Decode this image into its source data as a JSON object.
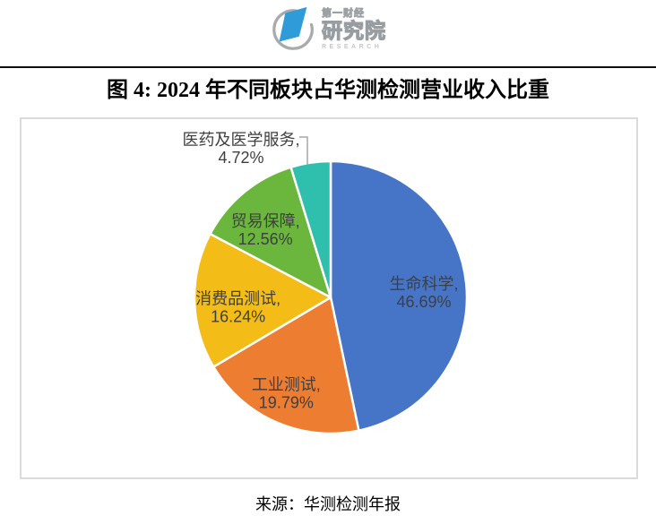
{
  "header": {
    "logo": {
      "cn_small": "第一财经",
      "cn_large": "研究院",
      "en": "RESEARCH",
      "brand_blue": "#2f9cd9",
      "brand_gray": "#a8abae"
    }
  },
  "title": "图 4: 2024 年不同板块占华测检测营业收入比重",
  "source": "来源：华测检测年报",
  "colors": {
    "label_text": "#3f3f3f",
    "leader_line": "#a6a6a6",
    "chart_border": "#dadada",
    "divider": "#0f0f0f"
  },
  "chart_data": {
    "type": "pie",
    "title": "2024 年不同板块占华测检测营业收入比重",
    "unit": "%",
    "start_angle_deg": 0,
    "direction": "clockwise",
    "label_format": "{name}, {value}%",
    "legend": "none",
    "series": [
      {
        "name": "生命科学",
        "value": 46.69,
        "color": "#4675c8"
      },
      {
        "name": "工业测试",
        "value": 19.79,
        "color": "#ed7d31"
      },
      {
        "name": "消费品测试",
        "value": 16.24,
        "color": "#f4bc16"
      },
      {
        "name": "贸易保障",
        "value": 12.56,
        "color": "#6bb73e"
      },
      {
        "name": "医药及医学服务",
        "value": 4.72,
        "color": "#2ebfad"
      }
    ]
  }
}
